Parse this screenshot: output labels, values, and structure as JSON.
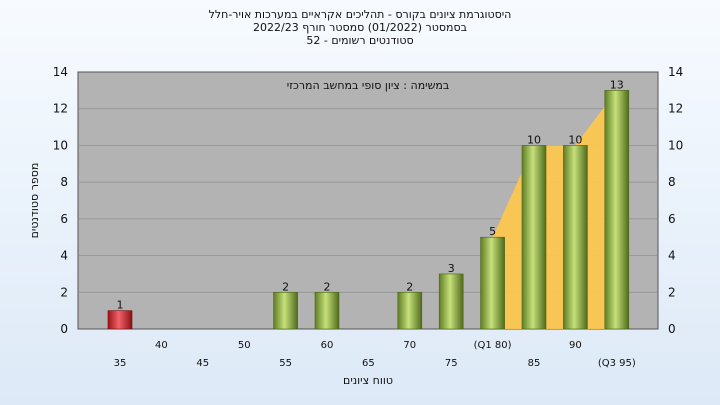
{
  "chart_data": {
    "type": "bar",
    "title": "היסטוגרמת ציונים בקורס - תהליכים אקראיים במערכות אויר-חלל",
    "subtitle_lines": [
      "בסמסטר  (01/2022)  סמסטר חורף  2022/23",
      "סטודנטים רשומים - 52"
    ],
    "annotation": "במשימה : ציון סופי במחשב המרכזי",
    "xlabel": "טווח ציונים",
    "ylabel": "מספר סטודנטים",
    "ylim": [
      0,
      14
    ],
    "yticks": [
      0,
      2,
      4,
      6,
      8,
      10,
      12,
      14
    ],
    "categories": [
      "35",
      "40",
      "45",
      "50",
      "55",
      "60",
      "65",
      "70",
      "75",
      "(Q1 80)",
      "85",
      "90",
      "(Q3 95)"
    ],
    "values": [
      1,
      0,
      0,
      0,
      2,
      2,
      0,
      2,
      3,
      5,
      10,
      10,
      13
    ],
    "value_labels": [
      "1",
      "",
      "",
      "",
      "2",
      "2",
      "",
      "2",
      "3",
      "5",
      "10",
      "10",
      "13"
    ],
    "bar_colors": [
      "#d9262e",
      "#8fb53c",
      "#8fb53c",
      "#8fb53c",
      "#8fb53c",
      "#8fb53c",
      "#8fb53c",
      "#8fb53c",
      "#8fb53c",
      "#8fb53c",
      "#8fb53c",
      "#8fb53c",
      "#8fb53c"
    ],
    "quartile_fill_color": "#ffc84a",
    "plot_background": "#b3b3b3",
    "grid": true,
    "legend": "none"
  }
}
